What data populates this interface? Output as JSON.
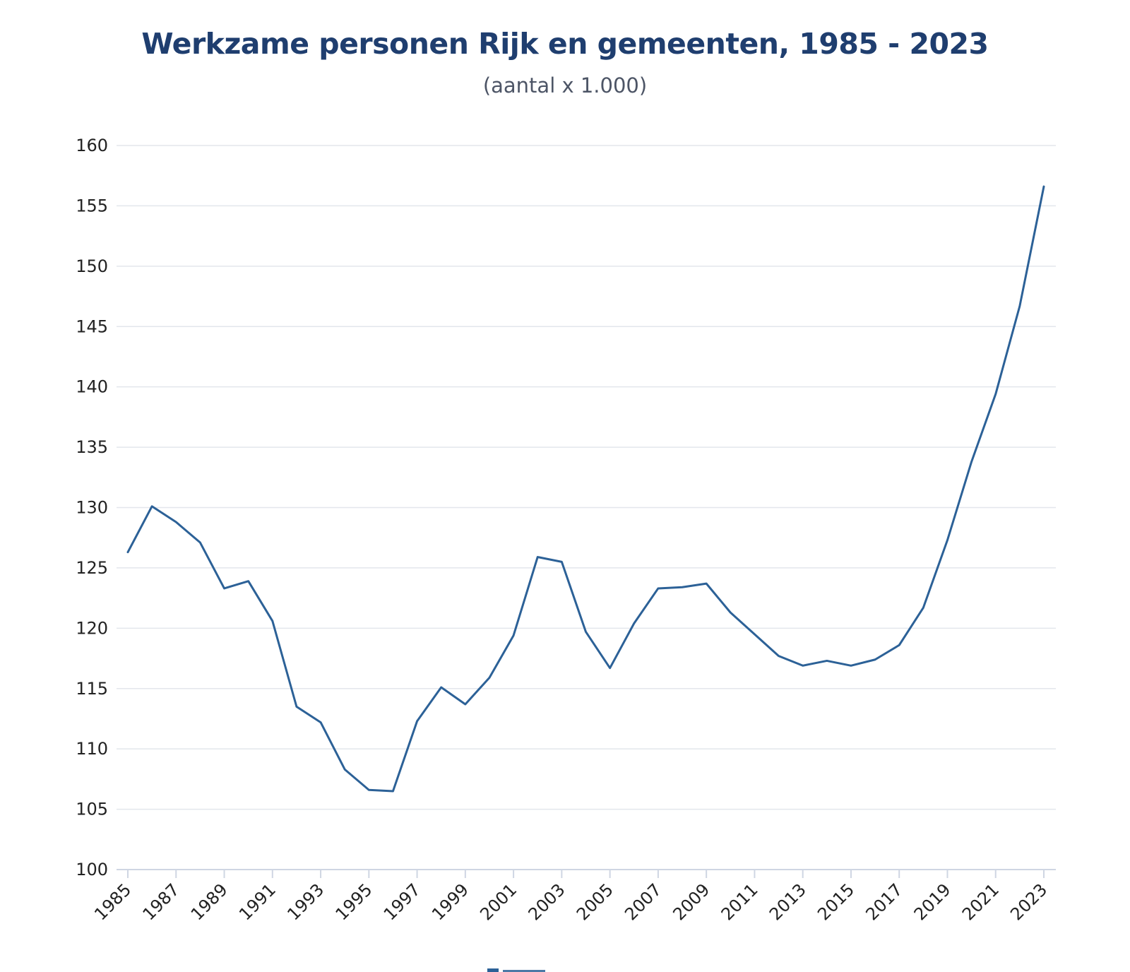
{
  "chart_data": {
    "type": "line",
    "title": "Werkzame personen Rijk en gemeenten, 1985 - 2023",
    "subtitle": "(aantal x 1.000)",
    "xlabel": "",
    "ylabel": "",
    "ylim": [
      100,
      160
    ],
    "yticks": [
      100,
      105,
      110,
      115,
      120,
      125,
      130,
      135,
      140,
      145,
      150,
      155,
      160
    ],
    "xtick_labels": [
      "1985",
      "1987",
      "1989",
      "1991",
      "1993",
      "1995",
      "1997",
      "1999",
      "2001",
      "2003",
      "2005",
      "2007",
      "2009",
      "2011",
      "2013",
      "2015",
      "2017",
      "2019",
      "2021",
      "2023"
    ],
    "grid": true,
    "legend": "bottom",
    "line_color": "#2c6197",
    "x": [
      1985,
      1986,
      1987,
      1988,
      1989,
      1990,
      1991,
      1992,
      1993,
      1994,
      1995,
      1996,
      1997,
      1998,
      1999,
      2000,
      2001,
      2002,
      2003,
      2004,
      2005,
      2006,
      2007,
      2008,
      2009,
      2010,
      2011,
      2012,
      2013,
      2014,
      2015,
      2016,
      2017,
      2018,
      2019,
      2020,
      2021,
      2022,
      2023
    ],
    "series": [
      {
        "values": [
          126.3,
          130.1,
          128.8,
          127.1,
          123.3,
          123.9,
          120.6,
          113.5,
          112.2,
          108.3,
          106.6,
          106.5,
          112.3,
          115.1,
          113.7,
          115.9,
          119.4,
          125.9,
          125.5,
          119.7,
          116.7,
          120.4,
          123.3,
          123.4,
          123.7,
          121.3,
          119.5,
          117.7,
          116.9,
          117.3,
          116.9,
          117.4,
          118.6,
          121.7,
          127.3,
          133.8,
          139.4,
          146.7,
          156.6
        ]
      }
    ]
  }
}
